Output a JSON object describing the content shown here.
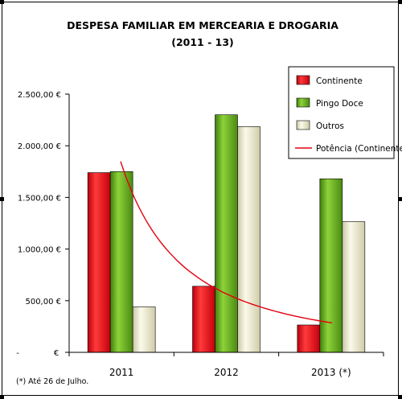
{
  "chart_data": {
    "type": "bar",
    "title": "DESPESA FAMILIAR EM MERCEARIA E DROGARIA",
    "subtitle": "(2011 - 13)",
    "categories": [
      "2011",
      "2012",
      "2013 (*)"
    ],
    "series": [
      {
        "name": "Continente",
        "values": [
          1740,
          640,
          265
        ],
        "color": "#e8001c"
      },
      {
        "name": "Pingo Doce",
        "values": [
          1750,
          2300,
          1680
        ],
        "color": "#5ca01c"
      },
      {
        "name": "Outros",
        "values": [
          440,
          2185,
          1265
        ],
        "color": "#eeeccf"
      }
    ],
    "trendline": {
      "name": "Potência (Continente)",
      "color": "#e3000f",
      "type": "power"
    },
    "y_ticks": [
      "-",
      "500,00",
      "1.000,00",
      "1.500,00",
      "2.000,00",
      "2.500,00"
    ],
    "y_tick_values": [
      0,
      500,
      1000,
      1500,
      2000,
      2500
    ],
    "y_unit": "€",
    "ylim": [
      0,
      2500
    ],
    "grid": false,
    "legend_position": "top-right",
    "note": "(*) Até 26 de Julho."
  }
}
